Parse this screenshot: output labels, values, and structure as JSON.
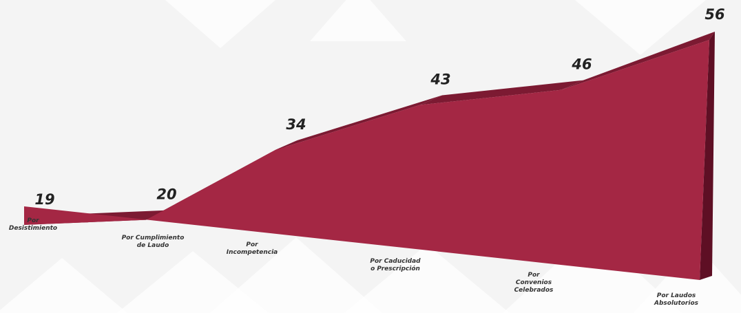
{
  "chart_data": {
    "type": "area",
    "title": "",
    "xlabel": "",
    "ylabel": "",
    "ylim": [
      0,
      56
    ],
    "grid": false,
    "legend": "none",
    "categories": [
      "Por Desistimiento",
      "Por Cumplimiento de Laudo",
      "Por Incompetencia",
      "Por Caducidad o Prescripción",
      "Por Convenios Celebrados",
      "Por Laudos Absolutorios"
    ],
    "category_lines": [
      [
        "Por",
        "Desistimiento"
      ],
      [
        "Por Cumplimiento",
        "de Laudo"
      ],
      [
        "Por",
        "Incompetencia"
      ],
      [
        "Por Caducidad",
        "o Prescripción"
      ],
      [
        "Por",
        "Convenios",
        "Celebrados"
      ],
      [
        "Por Laudos",
        "Absolutorios"
      ]
    ],
    "values": [
      19,
      20,
      34,
      43,
      46,
      56
    ],
    "colors": {
      "front": "#a42744",
      "top": "#7c1a32",
      "side": "#5e0f24",
      "background": "#f4f4f4",
      "background_shape": "#ffffff"
    }
  }
}
